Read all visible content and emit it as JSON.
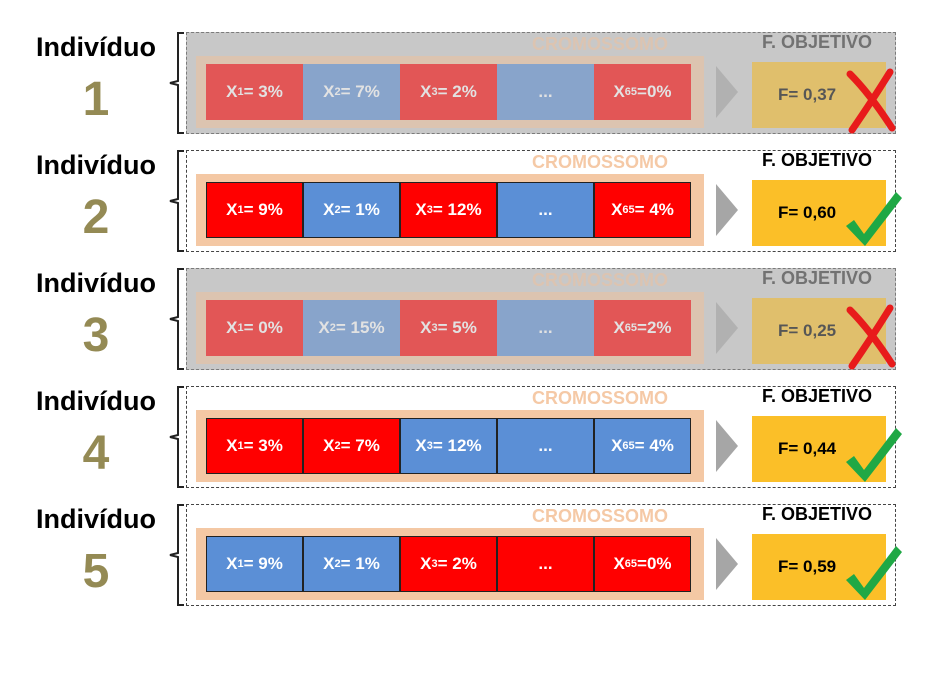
{
  "colors": {
    "red": "#ff0000",
    "blue": "#5b8fd6",
    "gold": "#948a54",
    "fobjective": "#fbbf28",
    "chromosome_bg": "#f4c8a4",
    "check": "#1fa845",
    "cross": "#e81b1b"
  },
  "individuals": [
    {
      "label": "Indivíduo",
      "number": "1",
      "status": "rejected",
      "chromosome_label": "CROMOSSOMO",
      "objective_label": "F. OBJETIVO",
      "genes": [
        {
          "var": "X",
          "sub": "1",
          "text": "= 3%",
          "color": "red"
        },
        {
          "var": "X",
          "sub": "2",
          "text": "= 7%",
          "color": "blue"
        },
        {
          "var": "X",
          "sub": "3",
          "text": "=  2%",
          "color": "red"
        },
        {
          "var": "",
          "sub": "",
          "text": "...",
          "color": "blue"
        },
        {
          "var": "X",
          "sub": "65",
          "text": "=0%",
          "color": "red"
        }
      ],
      "fitness": "F= 0,37",
      "mark_icon": "cross-icon"
    },
    {
      "label": "Indivíduo",
      "number": "2",
      "status": "selected",
      "chromosome_label": "CROMOSSOMO",
      "objective_label": "F. OBJETIVO",
      "genes": [
        {
          "var": "X",
          "sub": "1",
          "text": "= 9%",
          "color": "red"
        },
        {
          "var": "X",
          "sub": "2",
          "text": "= 1%",
          "color": "blue"
        },
        {
          "var": "X",
          "sub": "3",
          "text": "=  12%",
          "color": "red"
        },
        {
          "var": "",
          "sub": "",
          "text": "...",
          "color": "blue"
        },
        {
          "var": "X",
          "sub": "65",
          "text": "= 4%",
          "color": "red"
        }
      ],
      "fitness": "F= 0,60",
      "mark_icon": "check-icon"
    },
    {
      "label": "Indivíduo",
      "number": "3",
      "status": "rejected",
      "chromosome_label": "CROMOSSOMO",
      "objective_label": "F. OBJETIVO",
      "genes": [
        {
          "var": "X",
          "sub": "1",
          "text": "= 0%",
          "color": "red"
        },
        {
          "var": "X",
          "sub": "2",
          "text": "=  15%",
          "color": "blue"
        },
        {
          "var": "X",
          "sub": "3",
          "text": "=  5%",
          "color": "red"
        },
        {
          "var": "",
          "sub": "",
          "text": "...",
          "color": "blue"
        },
        {
          "var": "X",
          "sub": "65",
          "text": "=2%",
          "color": "red"
        }
      ],
      "fitness": "F= 0,25",
      "mark_icon": "cross-icon"
    },
    {
      "label": "Indivíduo",
      "number": "4",
      "status": "selected",
      "chromosome_label": "CROMOSSOMO",
      "objective_label": "F. OBJETIVO",
      "genes": [
        {
          "var": "X",
          "sub": "1",
          "text": "= 3%",
          "color": "red"
        },
        {
          "var": "X",
          "sub": "2",
          "text": "= 7%",
          "color": "red"
        },
        {
          "var": "X",
          "sub": "3",
          "text": "=  12%",
          "color": "blue"
        },
        {
          "var": "",
          "sub": "",
          "text": "...",
          "color": "blue"
        },
        {
          "var": "X",
          "sub": "65",
          "text": "= 4%",
          "color": "blue"
        }
      ],
      "fitness": "F= 0,44",
      "mark_icon": "check-icon"
    },
    {
      "label": "Indivíduo",
      "number": "5",
      "status": "selected",
      "chromosome_label": "CROMOSSOMO",
      "objective_label": "F. OBJETIVO",
      "genes": [
        {
          "var": "X",
          "sub": "1",
          "text": "= 9%",
          "color": "blue"
        },
        {
          "var": "X",
          "sub": "2",
          "text": "= 1%",
          "color": "blue"
        },
        {
          "var": "X",
          "sub": "3",
          "text": "=  2%",
          "color": "red"
        },
        {
          "var": "",
          "sub": "",
          "text": "...",
          "color": "red"
        },
        {
          "var": "X",
          "sub": "65",
          "text": "=0%",
          "color": "red"
        }
      ],
      "fitness": "F= 0,59",
      "mark_icon": "check-icon"
    }
  ]
}
